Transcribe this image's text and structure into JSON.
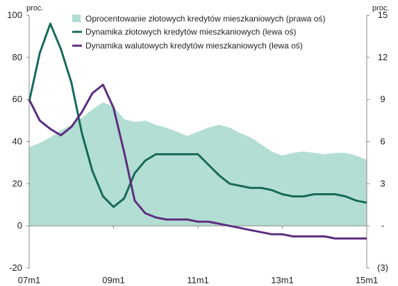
{
  "chart_data": {
    "type": "area+line",
    "title": "",
    "left_axis": {
      "unit": "proc.",
      "ylim": [
        -20,
        100
      ],
      "ticks": [
        -20,
        0,
        20,
        40,
        60,
        80,
        100
      ]
    },
    "right_axis": {
      "unit": "proc.",
      "ylim": [
        -3,
        15
      ],
      "tick_labels": [
        "(3)",
        "-",
        "3",
        "6",
        "9",
        "12",
        "15"
      ],
      "ticks": [
        -3,
        0,
        3,
        6,
        9,
        12,
        15
      ]
    },
    "x_axis": {
      "tick_labels": [
        "07m1",
        "09m1",
        "11m1",
        "13m1",
        "15m1"
      ],
      "start": "2007-01",
      "end": "2015-01"
    },
    "legend": {
      "position": "top",
      "items": [
        "Oprocentowanie złotowych kredytów mieszkaniowych (prawa oś)",
        "Dynamika złotowych kredytów mieszkaniowych (lewa oś)",
        "Dynamika walutowych kredytów mieszkaniowych (lewa oś)"
      ]
    },
    "series": [
      {
        "name": "Oprocentowanie złotowych kredytów mieszkaniowych (prawa oś)",
        "axis": "right",
        "style": "area",
        "color": "#b3ded3",
        "x": [
          "2007-01",
          "2007-04",
          "2007-07",
          "2007-10",
          "2008-01",
          "2008-04",
          "2008-07",
          "2008-10",
          "2009-01",
          "2009-04",
          "2009-07",
          "2009-10",
          "2010-01",
          "2010-04",
          "2010-07",
          "2010-10",
          "2011-01",
          "2011-04",
          "2011-07",
          "2011-10",
          "2012-01",
          "2012-04",
          "2012-07",
          "2012-10",
          "2013-01",
          "2013-04",
          "2013-07",
          "2013-10",
          "2014-01",
          "2014-04",
          "2014-07",
          "2014-10",
          "2015-01"
        ],
        "y": [
          5.6,
          5.9,
          6.3,
          6.8,
          7.2,
          7.7,
          8.3,
          8.8,
          8.5,
          7.6,
          7.4,
          7.5,
          7.2,
          7.0,
          6.7,
          6.4,
          6.7,
          7.0,
          7.2,
          7.0,
          6.6,
          6.3,
          5.8,
          5.3,
          5.0,
          5.2,
          5.3,
          5.2,
          5.1,
          5.2,
          5.2,
          5.0,
          4.7
        ]
      },
      {
        "name": "Dynamika złotowych kredytów mieszkaniowych (lewa oś)",
        "axis": "left",
        "style": "line",
        "color": "#17695a",
        "x": [
          "2007-01",
          "2007-04",
          "2007-07",
          "2007-10",
          "2008-01",
          "2008-04",
          "2008-07",
          "2008-10",
          "2009-01",
          "2009-04",
          "2009-07",
          "2009-10",
          "2010-01",
          "2010-04",
          "2010-07",
          "2010-10",
          "2011-01",
          "2011-04",
          "2011-07",
          "2011-10",
          "2012-01",
          "2012-04",
          "2012-07",
          "2012-10",
          "2013-01",
          "2013-04",
          "2013-07",
          "2013-10",
          "2014-01",
          "2014-04",
          "2014-07",
          "2014-10",
          "2015-01"
        ],
        "y": [
          59,
          82,
          96,
          84,
          68,
          44,
          26,
          14,
          9,
          13,
          25,
          31,
          34,
          34,
          34,
          34,
          34,
          29,
          24,
          20,
          19,
          18,
          18,
          17,
          15,
          14,
          14,
          15,
          15,
          15,
          14,
          12,
          11
        ]
      },
      {
        "name": "Dynamika walutowych kredytów mieszkaniowych (lewa oś)",
        "axis": "left",
        "style": "line",
        "color": "#5c2e7e",
        "x": [
          "2007-01",
          "2007-04",
          "2007-07",
          "2007-10",
          "2008-01",
          "2008-04",
          "2008-07",
          "2008-10",
          "2009-01",
          "2009-04",
          "2009-07",
          "2009-10",
          "2010-01",
          "2010-04",
          "2010-07",
          "2010-10",
          "2011-01",
          "2011-04",
          "2011-07",
          "2011-10",
          "2012-01",
          "2012-04",
          "2012-07",
          "2012-10",
          "2013-01",
          "2013-04",
          "2013-07",
          "2013-10",
          "2014-01",
          "2014-04",
          "2014-07",
          "2014-10",
          "2015-01"
        ],
        "y": [
          60,
          50,
          46,
          43,
          47,
          54,
          63,
          67,
          56,
          35,
          12,
          6,
          4,
          3,
          3,
          3,
          2,
          2,
          1,
          0,
          -1,
          -2,
          -3,
          -4,
          -4,
          -5,
          -5,
          -5,
          -5,
          -6,
          -6,
          -6,
          -6
        ]
      }
    ]
  }
}
